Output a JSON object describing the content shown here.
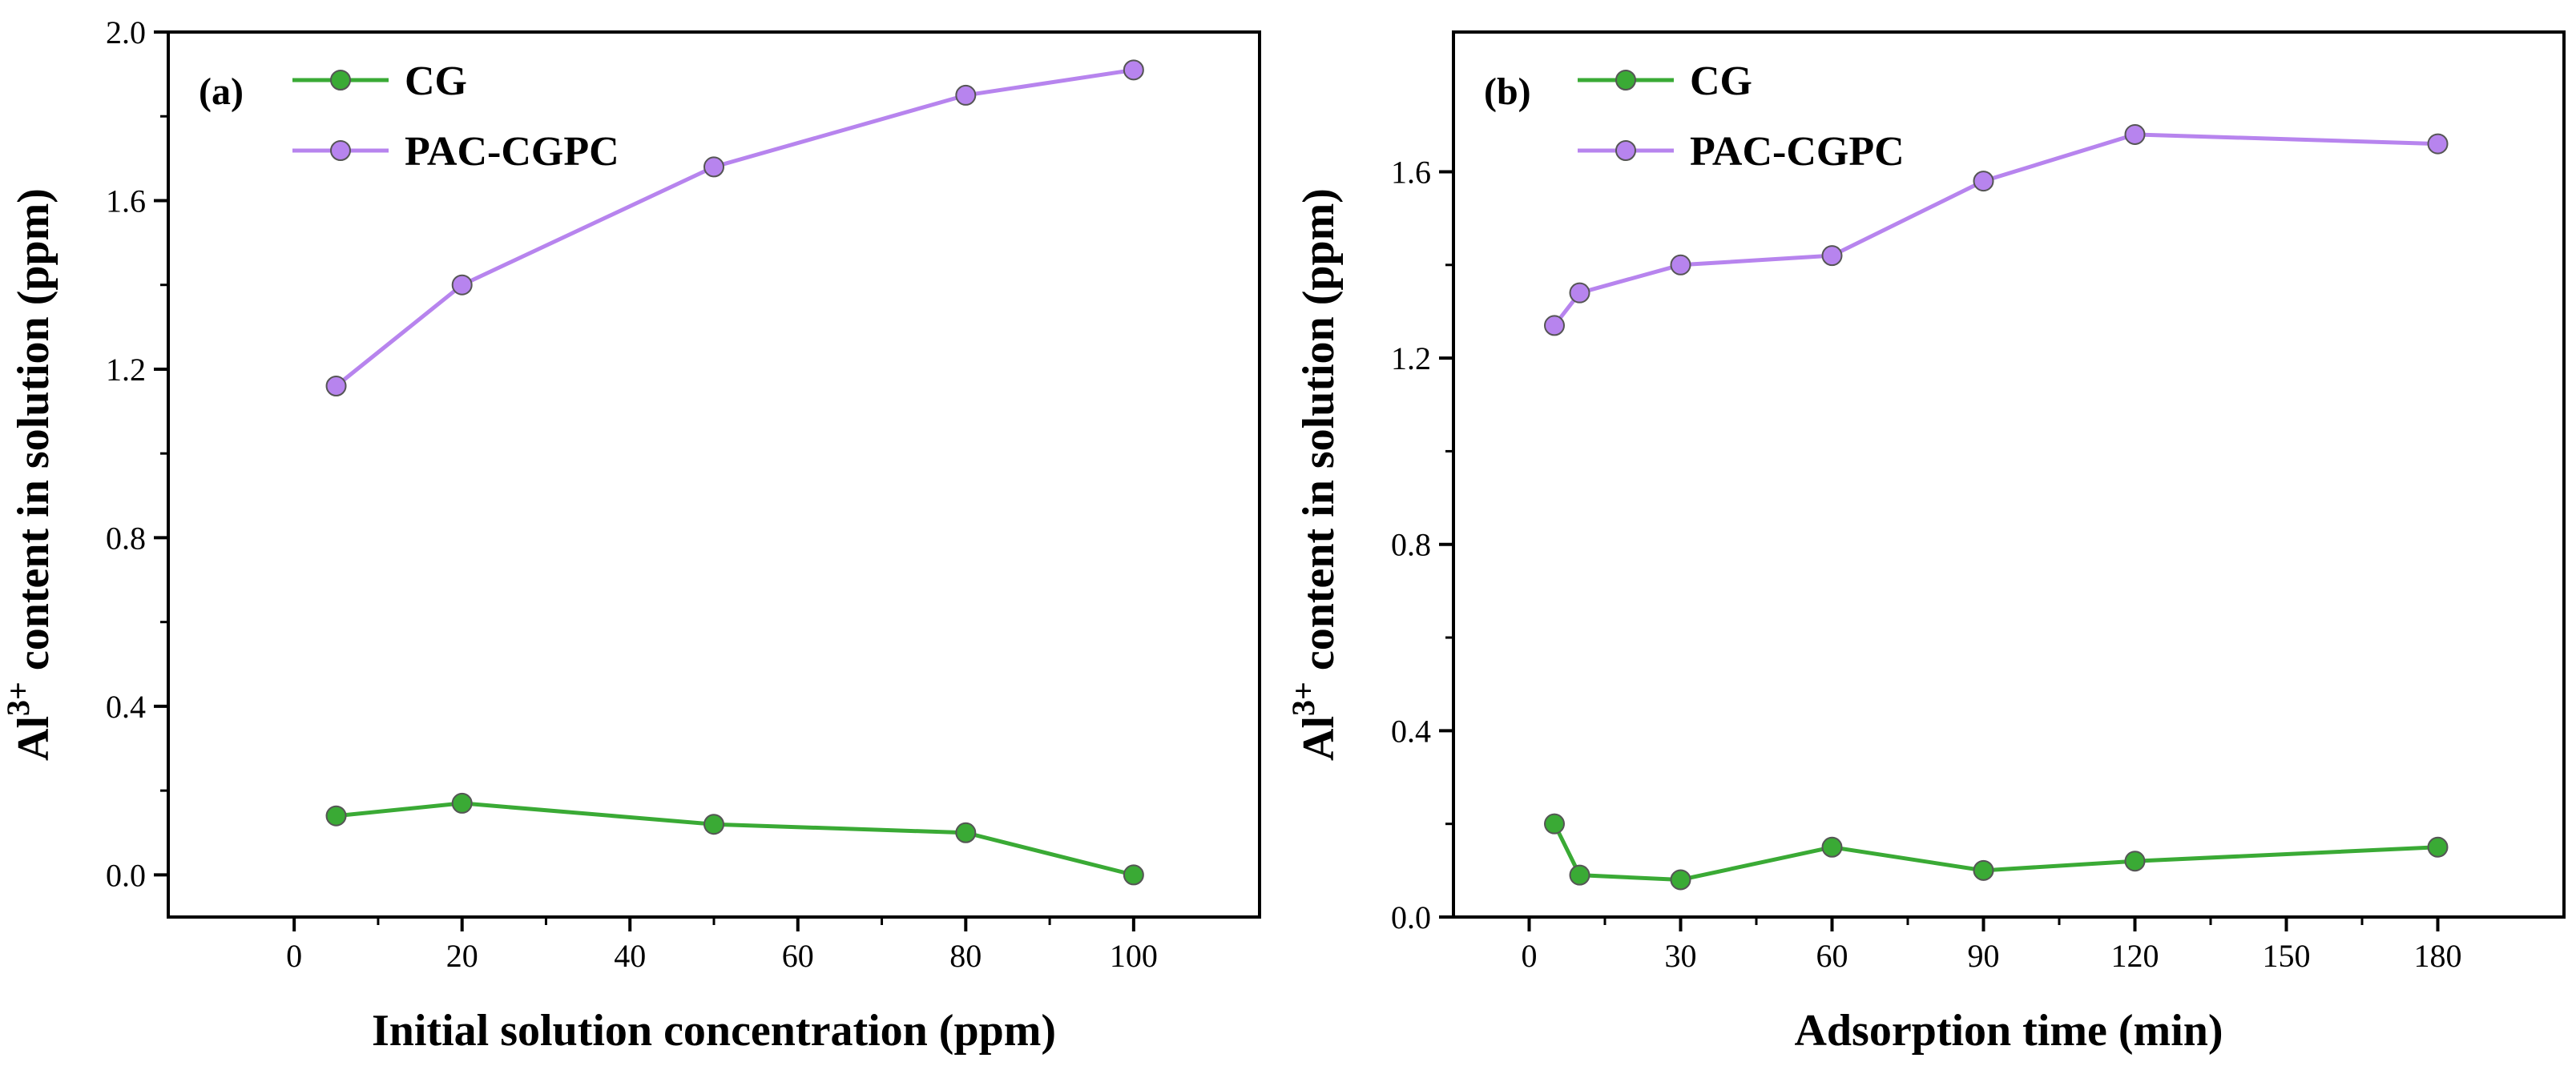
{
  "chart_data": [
    {
      "type": "line",
      "panel_label": "(a)",
      "xlabel": "Initial solution concentration (ppm)",
      "ylabel": {
        "base": "Al",
        "sup": "3+",
        "rest": " content in solution (ppm)"
      },
      "xlim": [
        -15,
        115
      ],
      "ylim": [
        -0.1,
        2.0
      ],
      "xticks": [
        0,
        20,
        40,
        60,
        80,
        100
      ],
      "yticks": [
        0.0,
        0.4,
        0.8,
        1.2,
        1.6,
        2.0
      ],
      "xtick_labels": [
        "0",
        "20",
        "40",
        "60",
        "80",
        "100"
      ],
      "ytick_labels": [
        "0.0",
        "0.4",
        "0.8",
        "1.2",
        "1.6",
        "2.0"
      ],
      "legend_position": "top-left",
      "series": [
        {
          "name": "CG",
          "color": "#3aaa35",
          "x": [
            5,
            20,
            50,
            80,
            100
          ],
          "y": [
            0.14,
            0.17,
            0.12,
            0.1,
            0.0
          ]
        },
        {
          "name": "PAC-CGPC",
          "color": "#b784ee",
          "x": [
            5,
            20,
            50,
            80,
            100
          ],
          "y": [
            1.16,
            1.4,
            1.68,
            1.85,
            1.91
          ]
        }
      ]
    },
    {
      "type": "line",
      "panel_label": "(b)",
      "xlabel": "Adsorption time (min)",
      "ylabel": {
        "base": "Al",
        "sup": "3+",
        "rest": " content in solution (ppm)"
      },
      "xlim": [
        -15,
        205
      ],
      "ylim": [
        0.0,
        1.9
      ],
      "xticks": [
        0,
        30,
        60,
        90,
        120,
        150,
        180
      ],
      "yticks": [
        0.0,
        0.4,
        0.8,
        1.2,
        1.6
      ],
      "xtick_labels": [
        "0",
        "30",
        "60",
        "90",
        "120",
        "150",
        "180"
      ],
      "ytick_labels": [
        "0.0",
        "0.4",
        "0.8",
        "1.2",
        "1.6"
      ],
      "legend_position": "top-left",
      "series": [
        {
          "name": "CG",
          "color": "#3aaa35",
          "x": [
            5,
            10,
            30,
            60,
            90,
            120,
            180
          ],
          "y": [
            0.2,
            0.09,
            0.08,
            0.15,
            0.1,
            0.12,
            0.15
          ]
        },
        {
          "name": "PAC-CGPC",
          "color": "#b784ee",
          "x": [
            5,
            10,
            30,
            60,
            90,
            120,
            180
          ],
          "y": [
            1.27,
            1.34,
            1.4,
            1.42,
            1.58,
            1.68,
            1.66
          ]
        }
      ]
    }
  ]
}
